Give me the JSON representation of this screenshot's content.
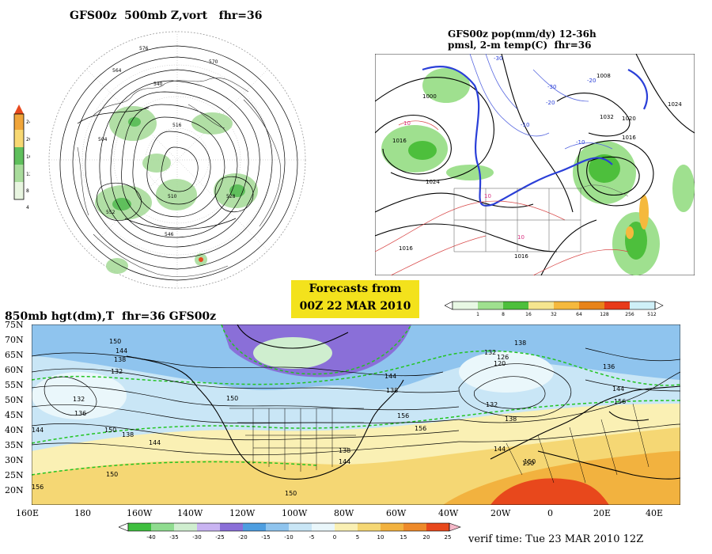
{
  "top_left": {
    "title": "GFS00z  500mb Z,vort   fhr=36",
    "colorbar_labels": [
      "24",
      "20",
      "16",
      "12",
      "8",
      "4"
    ],
    "colors": [
      "#e8f5e0",
      "#a9dc9c",
      "#5fbf5c",
      "#f7d873",
      "#f0a53a",
      "#e84a1e"
    ],
    "contour_labels": [
      "576",
      "570",
      "564",
      "552",
      "546",
      "540",
      "528",
      "516",
      "510",
      "504"
    ]
  },
  "top_right": {
    "title_line1": "GFS00z pop(mm/dy) 12-36h",
    "title_line2": "pmsl, 2-m temp(C)  fhr=36",
    "colorbar_labels": [
      "1",
      "8",
      "16",
      "32",
      "64",
      "128",
      "256",
      "512"
    ],
    "colors": [
      "#e8f8e4",
      "#9fe08f",
      "#4dbf3c",
      "#f5e58f",
      "#f5b93d",
      "#e8831a",
      "#e83a1a",
      "#cff0f8"
    ],
    "isobar_labels": [
      "1000",
      "1016",
      "1024",
      "1008",
      "1032",
      "1020",
      "1016",
      "1024",
      "1016",
      "1016"
    ],
    "temp_labels": [
      "-30",
      "-20",
      "-10",
      "-30",
      "-20",
      "-10",
      "10",
      "10",
      "10"
    ]
  },
  "forecast_box": {
    "line1": "Forecasts from",
    "line2": "00Z 22 MAR 2010"
  },
  "bottom": {
    "title": "850mb hgt(dm),T  fhr=36 GFS00z",
    "lat_labels": [
      "75N",
      "70N",
      "65N",
      "60N",
      "55N",
      "50N",
      "45N",
      "40N",
      "35N",
      "30N",
      "25N",
      "20N"
    ],
    "lon_labels": [
      "160E",
      "180",
      "160W",
      "140W",
      "120W",
      "100W",
      "80W",
      "60W",
      "40W",
      "20W",
      "0",
      "20E",
      "40E"
    ],
    "contour_labels": [
      "150",
      "144",
      "138",
      "132",
      "132",
      "136",
      "144",
      "150",
      "138",
      "144",
      "150",
      "132",
      "126",
      "120",
      "138",
      "132",
      "138",
      "144",
      "150",
      "156",
      "150",
      "156",
      "138",
      "144",
      "156",
      "150",
      "136",
      "144",
      "156",
      "150",
      "138",
      "144"
    ],
    "colorbar_labels": [
      "-40",
      "-35",
      "-30",
      "-25",
      "-20",
      "-15",
      "-10",
      "-5",
      "0",
      "5",
      "10",
      "15",
      "20",
      "25"
    ],
    "colors": [
      "#3fbf3f",
      "#8fdc8f",
      "#cfeecf",
      "#c9b4f2",
      "#8a6fd8",
      "#4e9ee0",
      "#8fc4ee",
      "#c9e6f6",
      "#eaf7fb",
      "#faf0b4",
      "#f5d774",
      "#f2b23f",
      "#ee8a2a",
      "#e8481c"
    ]
  },
  "verif": {
    "text": "verif time: Tue 23 MAR 2010 12Z"
  }
}
